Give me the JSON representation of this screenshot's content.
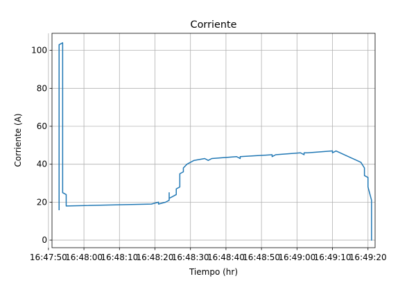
{
  "chart_data": {
    "type": "line",
    "title": "Corriente",
    "xlabel": "Tiempo (hr)",
    "ylabel": "Corriente (A)",
    "xlim": [
      "16:47:51",
      "16:49:22"
    ],
    "ylim": [
      -4,
      109
    ],
    "grid": true,
    "x_ticks": [
      "16:47:50",
      "16:48:00",
      "16:48:10",
      "16:48:20",
      "16:48:30",
      "16:48:40",
      "16:48:50",
      "16:49:00",
      "16:49:10",
      "16:49:20"
    ],
    "y_ticks": [
      0,
      20,
      40,
      60,
      80,
      100
    ],
    "colors": {
      "line": "#1f77b4",
      "grid": "#b0b0b0"
    },
    "series": [
      {
        "x": [
          "16:47:53",
          "16:47:53",
          "16:47:54",
          "16:47:54",
          "16:47:54",
          "16:47:55",
          "16:47:55",
          "16:47:55",
          "16:48:19",
          "16:48:21",
          "16:48:21",
          "16:48:23",
          "16:48:24",
          "16:48:24",
          "16:48:24",
          "16:48:25",
          "16:48:26",
          "16:48:26",
          "16:48:27",
          "16:48:27",
          "16:48:28",
          "16:48:28",
          "16:48:29",
          "16:48:31",
          "16:48:34",
          "16:48:35",
          "16:48:36",
          "16:48:43",
          "16:48:44",
          "16:48:44",
          "16:48:53",
          "16:48:53",
          "16:48:54",
          "16:48:54",
          "16:49:01",
          "16:49:02",
          "16:49:02",
          "16:49:03",
          "16:49:10",
          "16:49:10",
          "16:49:11",
          "16:49:18",
          "16:49:19",
          "16:49:19",
          "16:49:20",
          "16:49:20",
          "16:49:21",
          "16:49:21"
        ],
        "values": [
          16,
          103,
          104,
          27,
          25,
          24,
          18,
          18,
          19,
          20,
          19,
          20,
          21,
          25,
          22,
          23,
          24,
          27,
          28,
          35,
          36,
          38,
          40,
          42,
          43,
          42,
          43,
          44,
          43,
          44,
          45,
          44,
          45,
          45,
          46,
          45,
          46,
          46,
          47,
          46,
          47,
          41,
          38,
          34,
          33,
          28,
          21,
          0
        ]
      }
    ]
  }
}
